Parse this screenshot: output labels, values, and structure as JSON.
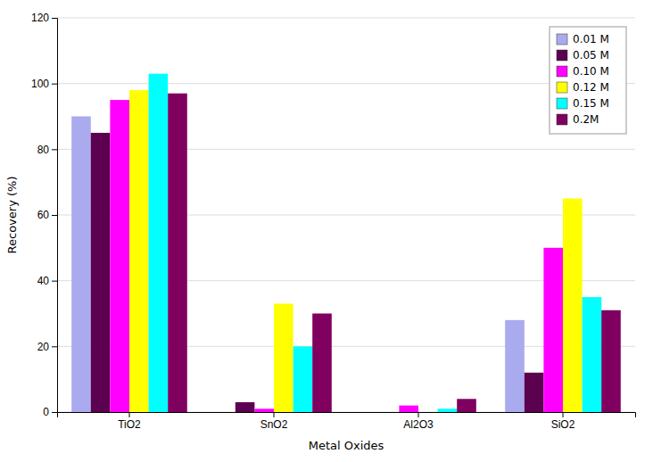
{
  "chart_data": {
    "type": "bar",
    "xlabel": "Metal Oxides",
    "ylabel": "Recovery (%)",
    "categories": [
      "TiO2",
      "SnO2",
      "Al2O3",
      "SiO2"
    ],
    "series": [
      {
        "name": "0.01 M",
        "color": "#aaaaee",
        "values": [
          90,
          0,
          0,
          28
        ]
      },
      {
        "name": "0.05 M",
        "color": "#5c0050",
        "values": [
          85,
          3,
          0,
          12
        ]
      },
      {
        "name": "0.10 M",
        "color": "#ff00ff",
        "values": [
          95,
          1,
          2,
          50
        ]
      },
      {
        "name": "0.12 M",
        "color": "#ffff00",
        "values": [
          98,
          33,
          0,
          65
        ]
      },
      {
        "name": "0.15 M",
        "color": "#00ffff",
        "values": [
          103,
          20,
          1,
          35
        ]
      },
      {
        "name": "0.2M",
        "color": "#800060",
        "values": [
          97,
          30,
          4,
          31
        ]
      }
    ],
    "ylim": [
      0,
      120
    ],
    "yticks": [
      0,
      20,
      40,
      60,
      80,
      100,
      120
    ],
    "grid": true,
    "legend": "upper right"
  }
}
